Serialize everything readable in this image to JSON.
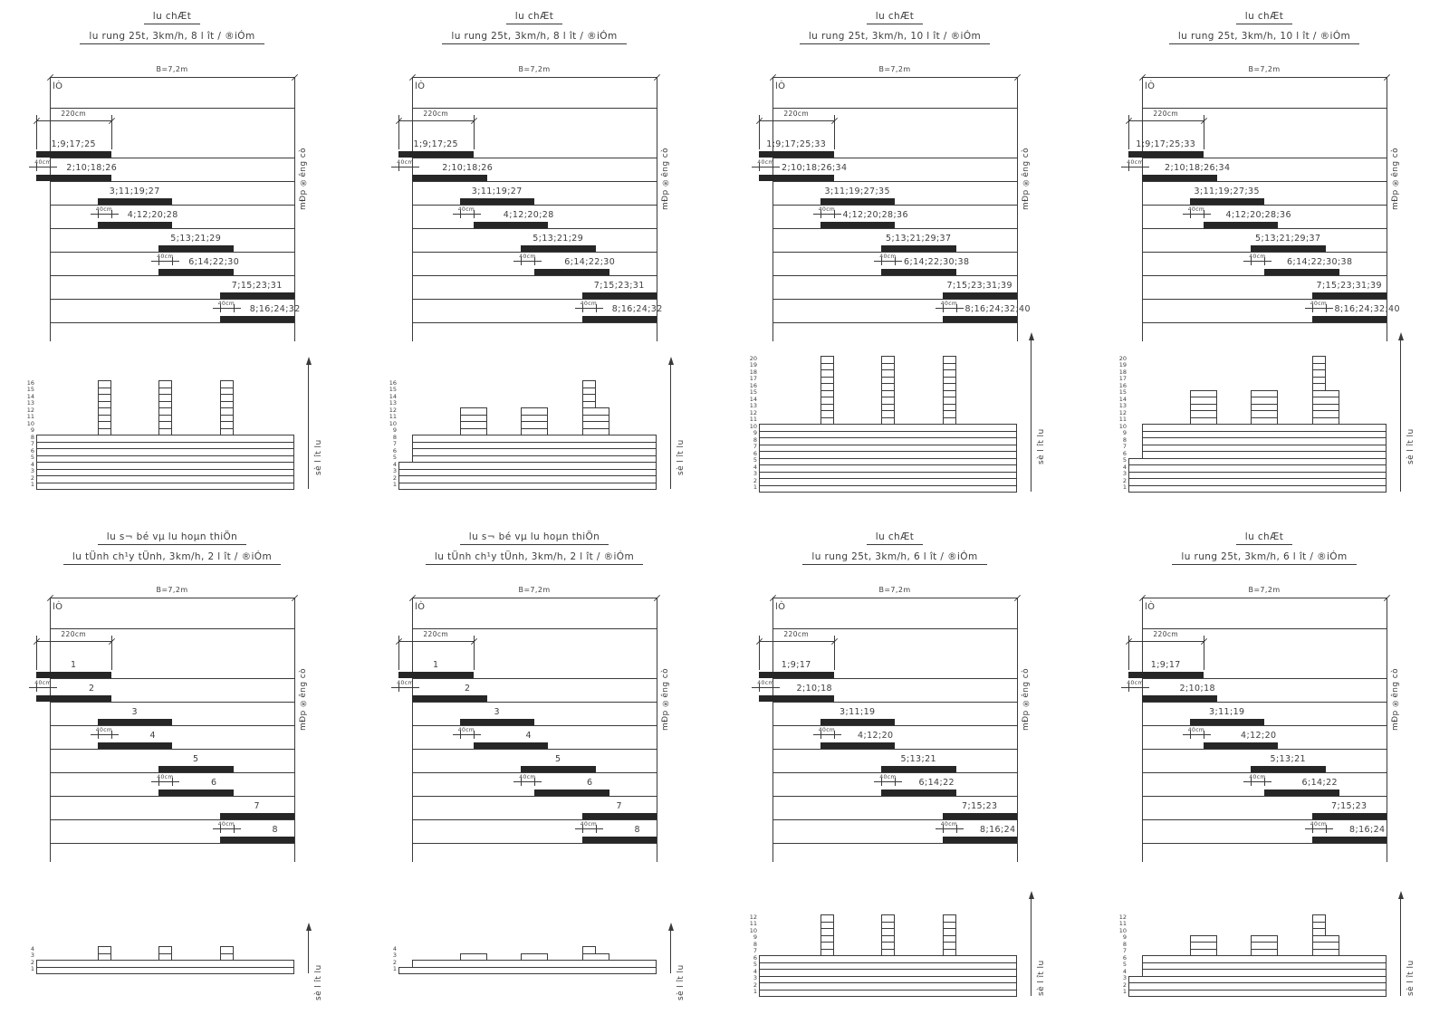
{
  "colors": {
    "line": "#3a3a3a",
    "bar": "#262626",
    "text": "#3d3d3d",
    "background": "#ffffff"
  },
  "common": {
    "b_dim": "B=7,2m",
    "edge_label": "lÒ",
    "strip_width_dim": "220cm",
    "overlap_dim": "40cm",
    "old_road_edge_label": "mÐp ®­êng cò",
    "pass_count_axis_label": "sè l ît lu"
  },
  "panels": [
    {
      "id": "panel-1",
      "title_line1": "lu chÆt",
      "title_line2": "lu rung 25t, 3km/h, 8 l ît / ®iÓm",
      "scheme": "aligned",
      "bar_labels": [
        "1;9;17;25",
        "2;10;18;26",
        "3;11;19;27",
        "4;12;20;28",
        "5;13;21;29",
        "6;14;22;30",
        "7;15;23;31",
        "8;16;24;32"
      ],
      "histogram": {
        "style": "uniform",
        "max_passes": 16,
        "axis_numbers": [
          16,
          15,
          14,
          13,
          12,
          11,
          10,
          9,
          8,
          7,
          6,
          5,
          4,
          3,
          2,
          1
        ]
      }
    },
    {
      "id": "panel-2",
      "title_line1": "lu chÆt",
      "title_line2": "lu rung 25t, 3km/h, 8 l ît / ®iÓm",
      "scheme": "offset",
      "bar_labels": [
        "1;9;17;25",
        "2;10;18;26",
        "3;11;19;27",
        "4;12;20;28",
        "5;13;21;29",
        "6;14;22;30",
        "7;15;23;31",
        "8;16;24;32"
      ],
      "histogram": {
        "style": "stepped",
        "max_passes": 16,
        "axis_numbers": [
          16,
          15,
          14,
          13,
          12,
          11,
          10,
          9,
          8,
          7,
          6,
          5,
          4,
          3,
          2,
          1
        ]
      }
    },
    {
      "id": "panel-3",
      "title_line1": "lu chÆt",
      "title_line2": "lu rung 25t, 3km/h, 10 l ît / ®iÓm",
      "scheme": "aligned",
      "bar_labels": [
        "1;9;17;25;33",
        "2;10;18;26;34",
        "3;11;19;27;35",
        "4;12;20;28;36",
        "5;13;21;29;37",
        "6;14;22;30;38",
        "7;15;23;31;39",
        "8;16;24;32;40"
      ],
      "histogram": {
        "style": "uniform",
        "max_passes": 20,
        "axis_numbers": [
          20,
          19,
          18,
          17,
          16,
          15,
          14,
          13,
          12,
          11,
          10,
          9,
          8,
          7,
          6,
          5,
          4,
          3,
          2,
          1
        ]
      }
    },
    {
      "id": "panel-4",
      "title_line1": "lu chÆt",
      "title_line2": "lu rung 25t, 3km/h, 10 l ît / ®iÓm",
      "scheme": "offset",
      "bar_labels": [
        "1;9;17;25;33",
        "2;10;18;26;34",
        "3;11;19;27;35",
        "4;12;20;28;36",
        "5;13;21;29;37",
        "6;14;22;30;38",
        "7;15;23;31;39",
        "8;16;24;32;40"
      ],
      "histogram": {
        "style": "stepped",
        "max_passes": 20,
        "axis_numbers": [
          20,
          19,
          18,
          17,
          16,
          15,
          14,
          13,
          12,
          11,
          10,
          9,
          8,
          7,
          6,
          5,
          4,
          3,
          2,
          1
        ]
      }
    },
    {
      "id": "panel-5",
      "title_line1": "lu s¬ bé vµ lu hoµn thiÖn",
      "title_line2": "lu tÜnh ch¹y tÜnh, 3km/h, 2 l ît / ®iÓm",
      "scheme": "aligned",
      "bar_labels": [
        "1",
        "2",
        "3",
        "4",
        "5",
        "6",
        "7",
        "8"
      ],
      "histogram": {
        "style": "uniform",
        "max_passes": 4,
        "axis_numbers": [
          4,
          3,
          2,
          1
        ]
      }
    },
    {
      "id": "panel-6",
      "title_line1": "lu s¬ bé vµ lu hoµn thiÖn",
      "title_line2": "lu tÜnh ch¹y tÜnh, 3km/h, 2 l ît / ®iÓm",
      "scheme": "offset",
      "bar_labels": [
        "1",
        "2",
        "3",
        "4",
        "5",
        "6",
        "7",
        "8"
      ],
      "histogram": {
        "style": "stepped",
        "max_passes": 4,
        "axis_numbers": [
          4,
          3,
          2,
          1
        ]
      }
    },
    {
      "id": "panel-7",
      "title_line1": "lu chÆt",
      "title_line2": "lu rung 25t, 3km/h, 6 l ît / ®iÓm",
      "scheme": "aligned",
      "bar_labels": [
        "1;9;17",
        "2;10;18",
        "3;11;19",
        "4;12;20",
        "5;13;21",
        "6;14;22",
        "7;15;23",
        "8;16;24"
      ],
      "histogram": {
        "style": "uniform",
        "max_passes": 12,
        "axis_numbers": [
          12,
          11,
          10,
          9,
          8,
          7,
          6,
          5,
          4,
          3,
          2,
          1
        ]
      }
    },
    {
      "id": "panel-8",
      "title_line1": "lu chÆt",
      "title_line2": "lu rung 25t, 3km/h, 6 l ît / ®iÓm",
      "scheme": "offset",
      "bar_labels": [
        "1;9;17",
        "2;10;18",
        "3;11;19",
        "4;12;20",
        "5;13;21",
        "6;14;22",
        "7;15;23",
        "8;16;24"
      ],
      "histogram": {
        "style": "stepped",
        "max_passes": 12,
        "axis_numbers": [
          12,
          11,
          10,
          9,
          8,
          7,
          6,
          5,
          4,
          3,
          2,
          1
        ]
      }
    }
  ]
}
